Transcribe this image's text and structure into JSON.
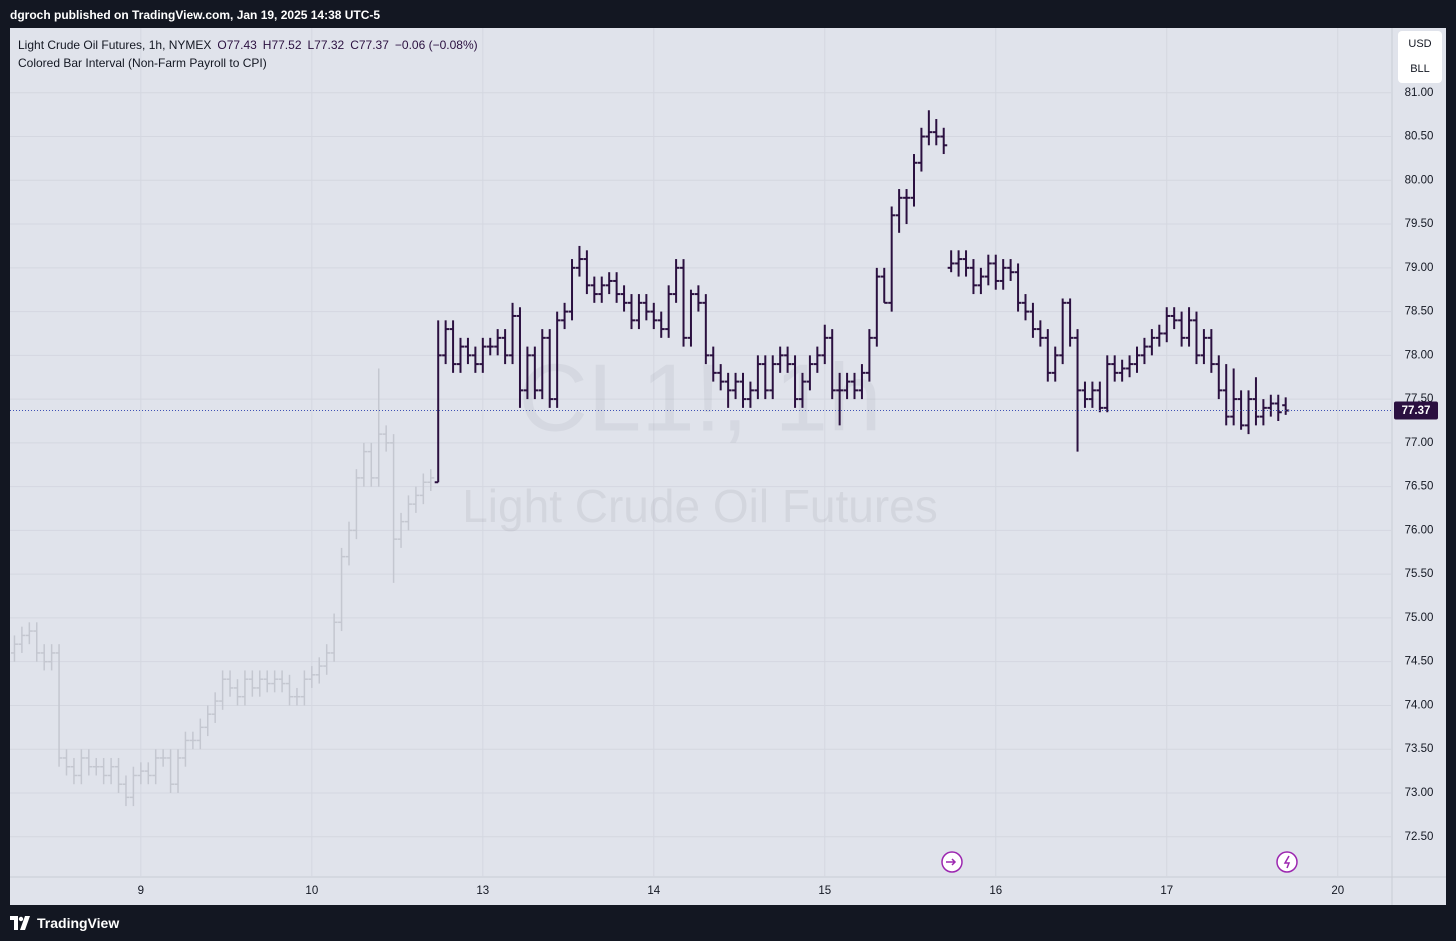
{
  "header": {
    "publisher": "dgroch published on TradingView.com, Jan 19, 2025 14:38 UTC-5",
    "brand": "TradingView"
  },
  "chart_data": {
    "type": "ohlc",
    "title": "Light Crude Oil Futures, 1h, NYMEX",
    "ohlc_legend": [
      "O77.43",
      "H77.52",
      "L77.32",
      "C77.37",
      "−0.06 (−0.08%)"
    ],
    "indicator": "Colored Bar Interval (Non-Farm Payroll to CPI)",
    "watermark": [
      "CL1!, 1h",
      "Light Crude Oil Futures"
    ],
    "currency": "USD",
    "unit": "BLL",
    "x": [
      1,
      2,
      3,
      4,
      5,
      6,
      7,
      8,
      9,
      10,
      11,
      12,
      13,
      14,
      15,
      16,
      17,
      18,
      19,
      20,
      21,
      22,
      23,
      24,
      25,
      26,
      27,
      28,
      29,
      30,
      31,
      32,
      33,
      34,
      35,
      36,
      37,
      38,
      39,
      40,
      41,
      42,
      43,
      44,
      45,
      46,
      47,
      48,
      49,
      50,
      51,
      52,
      53,
      54,
      55,
      56,
      57,
      58,
      59,
      60,
      61,
      62,
      63,
      64,
      65,
      66,
      67,
      68,
      69,
      70,
      71,
      72,
      73,
      74,
      75,
      76,
      77,
      78,
      79,
      80,
      81,
      82,
      83,
      84,
      85,
      86,
      87,
      88,
      89,
      90,
      91,
      92,
      93,
      94,
      95,
      96,
      97,
      98,
      99,
      100,
      101,
      102,
      103,
      104,
      105,
      106,
      107,
      108,
      109,
      110,
      111,
      112,
      113,
      114,
      115,
      116,
      117,
      118,
      119,
      120,
      121,
      122,
      123,
      124,
      125,
      126,
      127,
      128,
      129,
      130,
      131,
      132,
      133,
      134,
      135,
      136,
      137,
      138,
      139,
      140,
      141,
      142,
      143,
      144,
      145,
      146,
      147,
      148,
      149,
      150,
      151,
      152,
      153,
      154,
      155,
      156,
      157,
      158,
      159,
      160,
      161,
      162,
      163,
      164,
      165,
      166,
      167,
      168,
      169,
      170,
      171,
      172
    ],
    "open": [
      74.6,
      74.7,
      74.8,
      74.85,
      74.6,
      74.5,
      74.6,
      73.4,
      73.3,
      73.2,
      73.4,
      73.3,
      73.3,
      73.2,
      73.3,
      73.1,
      72.95,
      73.2,
      73.25,
      73.2,
      73.4,
      73.4,
      73.1,
      73.4,
      73.6,
      73.6,
      73.75,
      73.9,
      74.05,
      74.3,
      74.2,
      74.1,
      74.3,
      74.2,
      74.3,
      74.25,
      74.3,
      74.25,
      74.1,
      74.1,
      74.3,
      74.35,
      74.45,
      74.6,
      74.95,
      75.7,
      76.0,
      76.6,
      76.9,
      76.6,
      77.1,
      77.0,
      75.9,
      76.1,
      76.3,
      76.4,
      76.55,
      76.55,
      78.0,
      78.3,
      77.9,
      78.1,
      78.0,
      77.9,
      78.1,
      78.1,
      78.2,
      78.0,
      78.45,
      77.6,
      78.0,
      77.6,
      78.2,
      77.5,
      78.4,
      78.5,
      79.0,
      79.1,
      78.8,
      78.7,
      78.8,
      78.85,
      78.7,
      78.6,
      78.4,
      78.6,
      78.5,
      78.4,
      78.3,
      78.7,
      79.0,
      78.2,
      78.7,
      78.6,
      78.0,
      77.8,
      77.7,
      77.6,
      77.7,
      77.5,
      77.6,
      77.9,
      77.6,
      77.9,
      78.0,
      77.9,
      77.5,
      77.7,
      77.9,
      78.0,
      78.2,
      77.6,
      77.6,
      77.7,
      77.6,
      77.8,
      78.2,
      78.9,
      78.6,
      79.6,
      79.8,
      79.8,
      80.2,
      80.5,
      80.55,
      80.5,
      79.0,
      79.05,
      79.1,
      79.0,
      78.8,
      78.9,
      79.05,
      78.85,
      79.0,
      78.95,
      78.6,
      78.5,
      78.3,
      78.2,
      77.8,
      78.0,
      78.6,
      78.2,
      77.6,
      77.5,
      77.6,
      77.4,
      77.9,
      77.8,
      77.85,
      77.9,
      78.0,
      78.1,
      78.2,
      78.25,
      78.45,
      78.4,
      78.2,
      78.4,
      78.0,
      78.2,
      77.9,
      77.6,
      77.3,
      77.5,
      77.2,
      77.5,
      77.3,
      77.4,
      77.45,
      77.43
    ],
    "high": [
      74.8,
      74.9,
      74.95,
      74.95,
      74.7,
      74.7,
      74.7,
      73.5,
      73.4,
      73.5,
      73.5,
      73.4,
      73.4,
      73.4,
      73.4,
      73.2,
      73.3,
      73.35,
      73.35,
      73.5,
      73.5,
      73.5,
      73.5,
      73.7,
      73.7,
      73.85,
      74.0,
      74.15,
      74.4,
      74.4,
      74.3,
      74.4,
      74.4,
      74.4,
      74.4,
      74.4,
      74.4,
      74.35,
      74.2,
      74.4,
      74.45,
      74.55,
      74.7,
      75.05,
      75.8,
      76.1,
      76.7,
      77.0,
      77.0,
      77.85,
      77.2,
      77.1,
      76.2,
      76.4,
      76.5,
      76.65,
      76.7,
      78.4,
      78.4,
      78.4,
      78.2,
      78.2,
      78.1,
      78.2,
      78.2,
      78.3,
      78.3,
      78.6,
      78.55,
      78.1,
      78.1,
      78.3,
      78.3,
      78.5,
      78.6,
      79.1,
      79.25,
      79.2,
      78.9,
      78.9,
      78.95,
      78.95,
      78.8,
      78.7,
      78.7,
      78.7,
      78.6,
      78.5,
      78.8,
      79.1,
      79.1,
      78.75,
      78.8,
      78.7,
      78.1,
      77.9,
      77.8,
      77.8,
      77.8,
      77.7,
      78.0,
      78.0,
      78.0,
      78.1,
      78.1,
      78.0,
      77.8,
      78.0,
      78.1,
      78.35,
      78.3,
      77.8,
      77.8,
      77.8,
      77.9,
      78.3,
      79.0,
      79.0,
      79.7,
      79.9,
      79.9,
      80.3,
      80.6,
      80.8,
      80.7,
      80.6,
      79.2,
      79.2,
      79.2,
      79.1,
      79.0,
      79.15,
      79.15,
      79.1,
      79.1,
      79.05,
      78.7,
      78.6,
      78.4,
      78.3,
      78.1,
      78.65,
      78.65,
      78.3,
      77.7,
      77.7,
      77.7,
      78.0,
      78.0,
      77.95,
      78.0,
      78.1,
      78.2,
      78.3,
      78.35,
      78.55,
      78.55,
      78.5,
      78.55,
      78.5,
      78.3,
      78.3,
      78.0,
      77.9,
      77.85,
      77.6,
      77.6,
      77.75,
      77.5,
      77.55,
      77.55,
      77.52
    ],
    "low": [
      74.5,
      74.6,
      74.7,
      74.5,
      74.4,
      74.4,
      73.3,
      73.2,
      73.1,
      73.1,
      73.2,
      73.2,
      73.1,
      73.1,
      73.0,
      72.85,
      72.85,
      73.1,
      73.1,
      73.1,
      73.3,
      73.0,
      73.0,
      73.3,
      73.5,
      73.5,
      73.65,
      73.8,
      73.95,
      74.1,
      74.0,
      74.0,
      74.1,
      74.1,
      74.15,
      74.15,
      74.15,
      74.0,
      74.0,
      74.0,
      74.2,
      74.25,
      74.35,
      74.5,
      74.85,
      75.6,
      75.9,
      76.5,
      76.5,
      76.5,
      76.9,
      75.4,
      75.8,
      76.0,
      76.2,
      76.3,
      76.45,
      76.55,
      77.9,
      77.8,
      77.8,
      77.9,
      77.8,
      77.8,
      78.0,
      78.0,
      77.9,
      77.9,
      77.4,
      77.5,
      77.5,
      77.5,
      77.4,
      77.4,
      78.3,
      78.4,
      78.9,
      78.7,
      78.6,
      78.6,
      78.7,
      78.6,
      78.5,
      78.3,
      78.3,
      78.4,
      78.3,
      78.2,
      78.2,
      78.6,
      78.1,
      78.1,
      78.5,
      77.9,
      77.7,
      77.6,
      77.4,
      77.5,
      77.4,
      77.4,
      77.5,
      77.5,
      77.5,
      77.8,
      77.8,
      77.4,
      77.4,
      77.6,
      77.8,
      77.9,
      77.5,
      77.2,
      77.5,
      77.5,
      77.5,
      77.7,
      78.1,
      78.6,
      78.5,
      79.4,
      79.5,
      79.7,
      80.1,
      80.4,
      80.4,
      80.3,
      78.95,
      78.9,
      78.9,
      78.7,
      78.7,
      78.8,
      78.75,
      78.75,
      78.85,
      78.5,
      78.4,
      78.2,
      78.1,
      77.7,
      77.7,
      77.9,
      78.1,
      76.9,
      77.4,
      77.4,
      77.35,
      77.35,
      77.7,
      77.7,
      77.75,
      77.8,
      77.9,
      78.0,
      78.1,
      78.15,
      78.3,
      78.1,
      78.1,
      77.9,
      77.9,
      77.8,
      77.5,
      77.2,
      77.2,
      77.15,
      77.1,
      77.2,
      77.2,
      77.3,
      77.25,
      77.32
    ],
    "close": [
      74.7,
      74.8,
      74.85,
      74.6,
      74.5,
      74.6,
      73.4,
      73.3,
      73.2,
      73.4,
      73.3,
      73.3,
      73.2,
      73.3,
      73.1,
      72.95,
      73.2,
      73.25,
      73.2,
      73.4,
      73.4,
      73.1,
      73.4,
      73.6,
      73.6,
      73.75,
      73.9,
      74.05,
      74.3,
      74.2,
      74.1,
      74.3,
      74.2,
      74.3,
      74.25,
      74.3,
      74.25,
      74.1,
      74.1,
      74.3,
      74.35,
      74.45,
      74.6,
      74.95,
      75.7,
      76.0,
      76.6,
      76.9,
      76.6,
      77.1,
      77.0,
      75.9,
      76.1,
      76.3,
      76.4,
      76.55,
      76.6,
      78.0,
      78.3,
      77.9,
      78.1,
      78.0,
      77.9,
      78.1,
      78.1,
      78.2,
      78.0,
      78.45,
      77.6,
      78.0,
      77.6,
      78.2,
      77.5,
      78.4,
      78.5,
      79.0,
      79.1,
      78.8,
      78.7,
      78.8,
      78.85,
      78.7,
      78.6,
      78.4,
      78.6,
      78.5,
      78.4,
      78.3,
      78.7,
      79.0,
      78.2,
      78.7,
      78.6,
      78.0,
      77.8,
      77.7,
      77.6,
      77.7,
      77.5,
      77.6,
      77.9,
      77.6,
      77.9,
      78.0,
      77.9,
      77.5,
      77.7,
      77.9,
      78.0,
      78.2,
      77.6,
      77.6,
      77.7,
      77.6,
      77.8,
      78.2,
      78.9,
      78.6,
      79.6,
      79.8,
      79.8,
      80.2,
      80.5,
      80.55,
      80.5,
      80.4,
      79.05,
      79.1,
      79.0,
      78.8,
      78.9,
      79.05,
      78.85,
      79.0,
      78.95,
      78.6,
      78.5,
      78.3,
      78.2,
      77.8,
      78.0,
      78.6,
      78.2,
      77.6,
      77.5,
      77.6,
      77.4,
      77.9,
      77.8,
      77.85,
      77.9,
      78.0,
      78.1,
      78.2,
      78.25,
      78.45,
      78.4,
      78.2,
      78.4,
      78.0,
      78.2,
      77.9,
      77.6,
      77.3,
      77.5,
      77.2,
      77.5,
      77.3,
      77.4,
      77.45,
      77.35,
      77.37
    ],
    "color": "#c4c7d0",
    "colored_interval": {
      "x_from": 58,
      "color": "#2b1040"
    },
    "last_price": 77.37,
    "last_price_color": "#2b1040",
    "last_line_color": "#3f51b5",
    "xlim": [
      0.4,
      186.3
    ],
    "xticks": [
      {
        "value": 18,
        "label": "9"
      },
      {
        "value": 41,
        "label": "10"
      },
      {
        "value": 64,
        "label": "13"
      },
      {
        "value": 87,
        "label": "14"
      },
      {
        "value": 110,
        "label": "15"
      },
      {
        "value": 133,
        "label": "16"
      },
      {
        "value": 156,
        "label": "17"
      },
      {
        "value": 179,
        "label": "20"
      }
    ],
    "ylim": [
      72.04,
      81.74
    ],
    "yticks": [
      {
        "value": 72.5,
        "label": "72.50"
      },
      {
        "value": 73,
        "label": "73.00"
      },
      {
        "value": 73.5,
        "label": "73.50"
      },
      {
        "value": 74,
        "label": "74.00"
      },
      {
        "value": 74.5,
        "label": "74.50"
      },
      {
        "value": 75,
        "label": "75.00"
      },
      {
        "value": 75.5,
        "label": "75.50"
      },
      {
        "value": 76,
        "label": "76.00"
      },
      {
        "value": 76.5,
        "label": "76.50"
      },
      {
        "value": 77,
        "label": "77.00"
      },
      {
        "value": 77.5,
        "label": "77.50"
      },
      {
        "value": 78,
        "label": "78.00"
      },
      {
        "value": 78.5,
        "label": "78.50"
      },
      {
        "value": 79,
        "label": "79.00"
      },
      {
        "value": 79.5,
        "label": "79.50"
      },
      {
        "value": 80,
        "label": "80.00"
      },
      {
        "value": 80.5,
        "label": "80.50"
      },
      {
        "value": 81,
        "label": "81.00"
      }
    ],
    "grid": true
  }
}
